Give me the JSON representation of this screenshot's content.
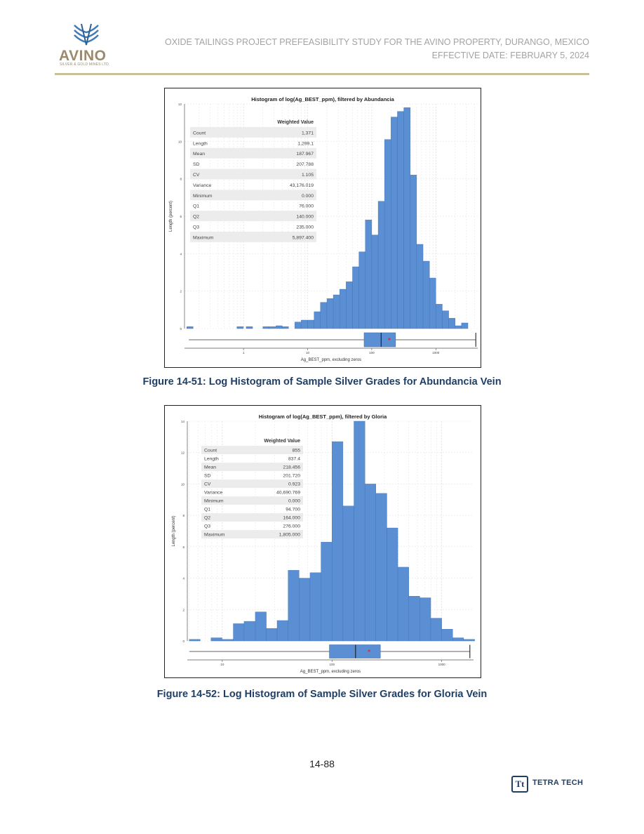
{
  "header": {
    "logo_word": "AVINO",
    "logo_sub": "SILVER & GOLD MINES LTD.",
    "title": "OXIDE TAILINGS PROJECT PREFEASIBILITY STUDY FOR THE AVINO PROPERTY, DURANGO, MEXICO",
    "date": "EFFECTIVE DATE: FEBRUARY 5, 2024",
    "colors": {
      "logo": "#9c8a6e",
      "logo_icon": "#3f7ab8",
      "rule": "#c9bf9a",
      "caption": "#1f3f66"
    }
  },
  "figures": [
    {
      "caption": "Figure 14-51: Log Histogram of Sample Silver Grades for Abundancia Vein",
      "chart_data": {
        "type": "bar",
        "title": "Histogram of log(Ag_BEST_ppm), filtered by Abundancia",
        "xlabel": "Ag_BEST_ppm, excluding zeros",
        "ylabel": "Length (percent)",
        "x_scale": "log",
        "xlim": [
          0.12,
          4500
        ],
        "ylim": [
          0,
          12
        ],
        "x_ticks": [
          1,
          10,
          100,
          1000
        ],
        "x_tick_labels": [
          "1",
          "10",
          "100",
          "1000"
        ],
        "y_ticks": [
          0,
          2,
          4,
          6,
          8,
          10,
          12
        ],
        "y_tick_labels": [
          "0",
          "2",
          "4",
          "6",
          "8",
          "10",
          "12"
        ],
        "bar_color": "#5b8fd4",
        "bin_log_width": 0.1,
        "bin_left_edges": [
          0.13,
          0.79,
          1.1,
          2.0,
          2.5,
          3.2,
          4.0,
          6.3,
          7.9,
          10,
          12.6,
          15.8,
          20,
          25.1,
          31.6,
          39.8,
          50.1,
          63.1,
          79.4,
          100,
          125.9,
          158.5,
          199.5,
          251.2,
          316.2,
          398.1,
          501.2,
          631,
          794.3,
          1000
        ],
        "values": [
          0.1,
          0.1,
          0.1,
          0.1,
          0.1,
          0.15,
          0.1,
          0.35,
          0.45,
          0.45,
          0.9,
          1.4,
          1.6,
          1.8,
          2.1,
          2.5,
          3.3,
          4.1,
          5.8,
          5.0,
          6.8,
          10.1,
          11.3,
          11.6,
          11.8,
          8.2,
          4.5,
          3.6,
          2.7,
          1.3
        ],
        "extra_bins": {
          "left_edges": [
            1259,
            1585,
            2512
          ],
          "values": [
            0.95,
            0.55,
            0.3
          ]
        },
        "trailing_bins": {
          "left_edges": [
            1995
          ],
          "values": [
            0.15
          ]
        },
        "stats_header": "Weighted Value",
        "stats": [
          {
            "label": "Count",
            "value": "1,371"
          },
          {
            "label": "Length",
            "value": "1,299.1"
          },
          {
            "label": "Mean",
            "value": "187.967"
          },
          {
            "label": "SD",
            "value": "207.788"
          },
          {
            "label": "CV",
            "value": "1.105"
          },
          {
            "label": "Variance",
            "value": "43,176.019"
          },
          {
            "label": "Minimum",
            "value": "0.000"
          },
          {
            "label": "Q1",
            "value": "76.000"
          },
          {
            "label": "Q2",
            "value": "140.000"
          },
          {
            "label": "Q3",
            "value": "235.000"
          },
          {
            "label": "Maximum",
            "value": "5,897.400"
          }
        ],
        "boxplot": {
          "min": 0.14,
          "q1": 76,
          "median": 140,
          "q3": 235,
          "mean": 188,
          "max": 4200
        }
      }
    },
    {
      "caption": "Figure 14-52: Log Histogram of Sample Silver Grades for Gloria Vein",
      "chart_data": {
        "type": "bar",
        "title": "Histogram of log(Ag_BEST_ppm), filtered by Gloria",
        "xlabel": "Ag_BEST_ppm, excluding zeros",
        "ylabel": "Length (percent)",
        "x_scale": "log",
        "xlim": [
          4.8,
          1950
        ],
        "ylim": [
          0,
          14
        ],
        "x_ticks": [
          10,
          100,
          1000
        ],
        "x_tick_labels": [
          "10",
          "100",
          "1000"
        ],
        "y_ticks": [
          0,
          2,
          4,
          6,
          8,
          10,
          12,
          14
        ],
        "y_tick_labels": [
          "0",
          "2",
          "4",
          "6",
          "8",
          "10",
          "12",
          "14"
        ],
        "bar_color": "#5b8fd4",
        "bin_log_width": 0.1,
        "bin_left_edges": [
          5.0,
          6.3,
          7.9,
          10,
          12.6,
          15.8,
          20,
          25.1,
          31.6,
          39.8,
          50.1,
          63.1,
          79.4,
          100,
          125.9,
          158.5,
          199.5,
          251.2,
          316.2,
          398.1,
          501.2,
          631,
          794.3,
          1000,
          1258.9,
          1584.9
        ],
        "values": [
          0.1,
          0.0,
          0.2,
          0.1,
          1.1,
          1.25,
          1.85,
          0.8,
          1.3,
          4.5,
          4.0,
          4.35,
          6.3,
          12.7,
          8.6,
          14.0,
          10.0,
          9.4,
          7.2,
          4.7,
          2.85,
          2.75,
          1.45,
          0.75,
          0.2,
          0.1
        ],
        "stats_header": "Weighted Value",
        "stats": [
          {
            "label": "Count",
            "value": "855"
          },
          {
            "label": "Length",
            "value": "837.4"
          },
          {
            "label": "Mean",
            "value": "218.456"
          },
          {
            "label": "SD",
            "value": "201.720"
          },
          {
            "label": "CV",
            "value": "0.923"
          },
          {
            "label": "Variance",
            "value": "40,690.769"
          },
          {
            "label": "Minimum",
            "value": "0.000"
          },
          {
            "label": "Q1",
            "value": "94.700"
          },
          {
            "label": "Q2",
            "value": "164.000"
          },
          {
            "label": "Q3",
            "value": "276.000"
          },
          {
            "label": "Maximum",
            "value": "1,805.000"
          }
        ],
        "boxplot": {
          "min": 5.0,
          "q1": 94.7,
          "median": 164,
          "q3": 276,
          "mean": 218,
          "max": 1805
        }
      }
    }
  ],
  "footer": {
    "page_number": "14-88",
    "tt_mark": "Tt",
    "company": "TETRA TECH"
  }
}
